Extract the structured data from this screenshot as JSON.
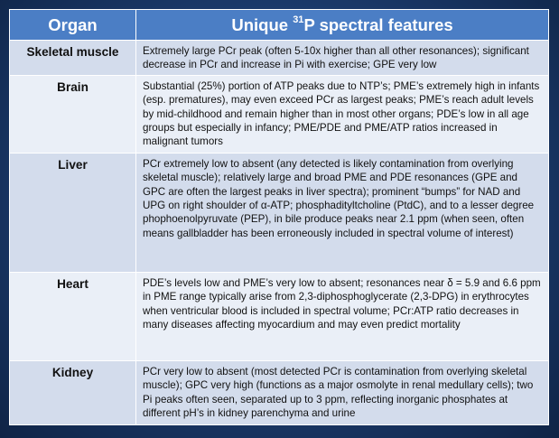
{
  "header": {
    "organ_label": "Organ",
    "features_prefix": "Unique ",
    "features_sup": "31",
    "features_suffix": "P spectral features"
  },
  "rows": [
    {
      "organ": "Skeletal muscle",
      "features": "Extremely large PCr peak (often 5-10x higher than all other resonances); significant decrease in PCr and increase in Pi with exercise; GPE very low"
    },
    {
      "organ": "Brain",
      "features": "Substantial (25%) portion of ATP peaks due to NTP’s; PME’s extremely high in infants (esp. prematures), may even exceed PCr as largest peaks; PME’s reach adult levels by mid-childhood and remain higher than in most other organs; PDE’s low in all age groups but especially in infancy; PME/PDE and PME/ATP ratios increased in malignant tumors"
    },
    {
      "organ": "Liver",
      "features": "PCr extremely low to absent (any detected is likely contamination from overlying skeletal muscle); relatively large and broad PME and PDE resonances (GPE and GPC are often the largest peaks in liver spectra); prominent “bumps” for NAD and UPG on right shoulder of α-ATP; phosphadityltcholine (PtdC), and to a lesser degree phophoenolpyruvate (PEP), in bile produce peaks near 2.1 ppm (when seen, often means gallbladder has been erroneously included in spectral volume of interest)"
    },
    {
      "organ": "Heart",
      "features": "PDE’s levels low and PME’s very low to absent; resonances near δ = 5.9 and 6.6 ppm in PME range typically arise from 2,3-diphosphoglycerate (2,3-DPG) in erythrocytes when ventricular blood is included in spectral volume; PCr:ATP ratio decreases in many diseases affecting myocardium and may even predict mortality"
    },
    {
      "organ": "Kidney",
      "features": "PCr very low to absent (most detected PCr is contamination from overlying skeletal muscle); GPC very high (functions as a major osmolyte in renal medullary cells); two Pi peaks often seen, separated up to 3 ppm, reflecting inorganic phosphates at different pH’s in kidney parenchyma and urine"
    }
  ]
}
